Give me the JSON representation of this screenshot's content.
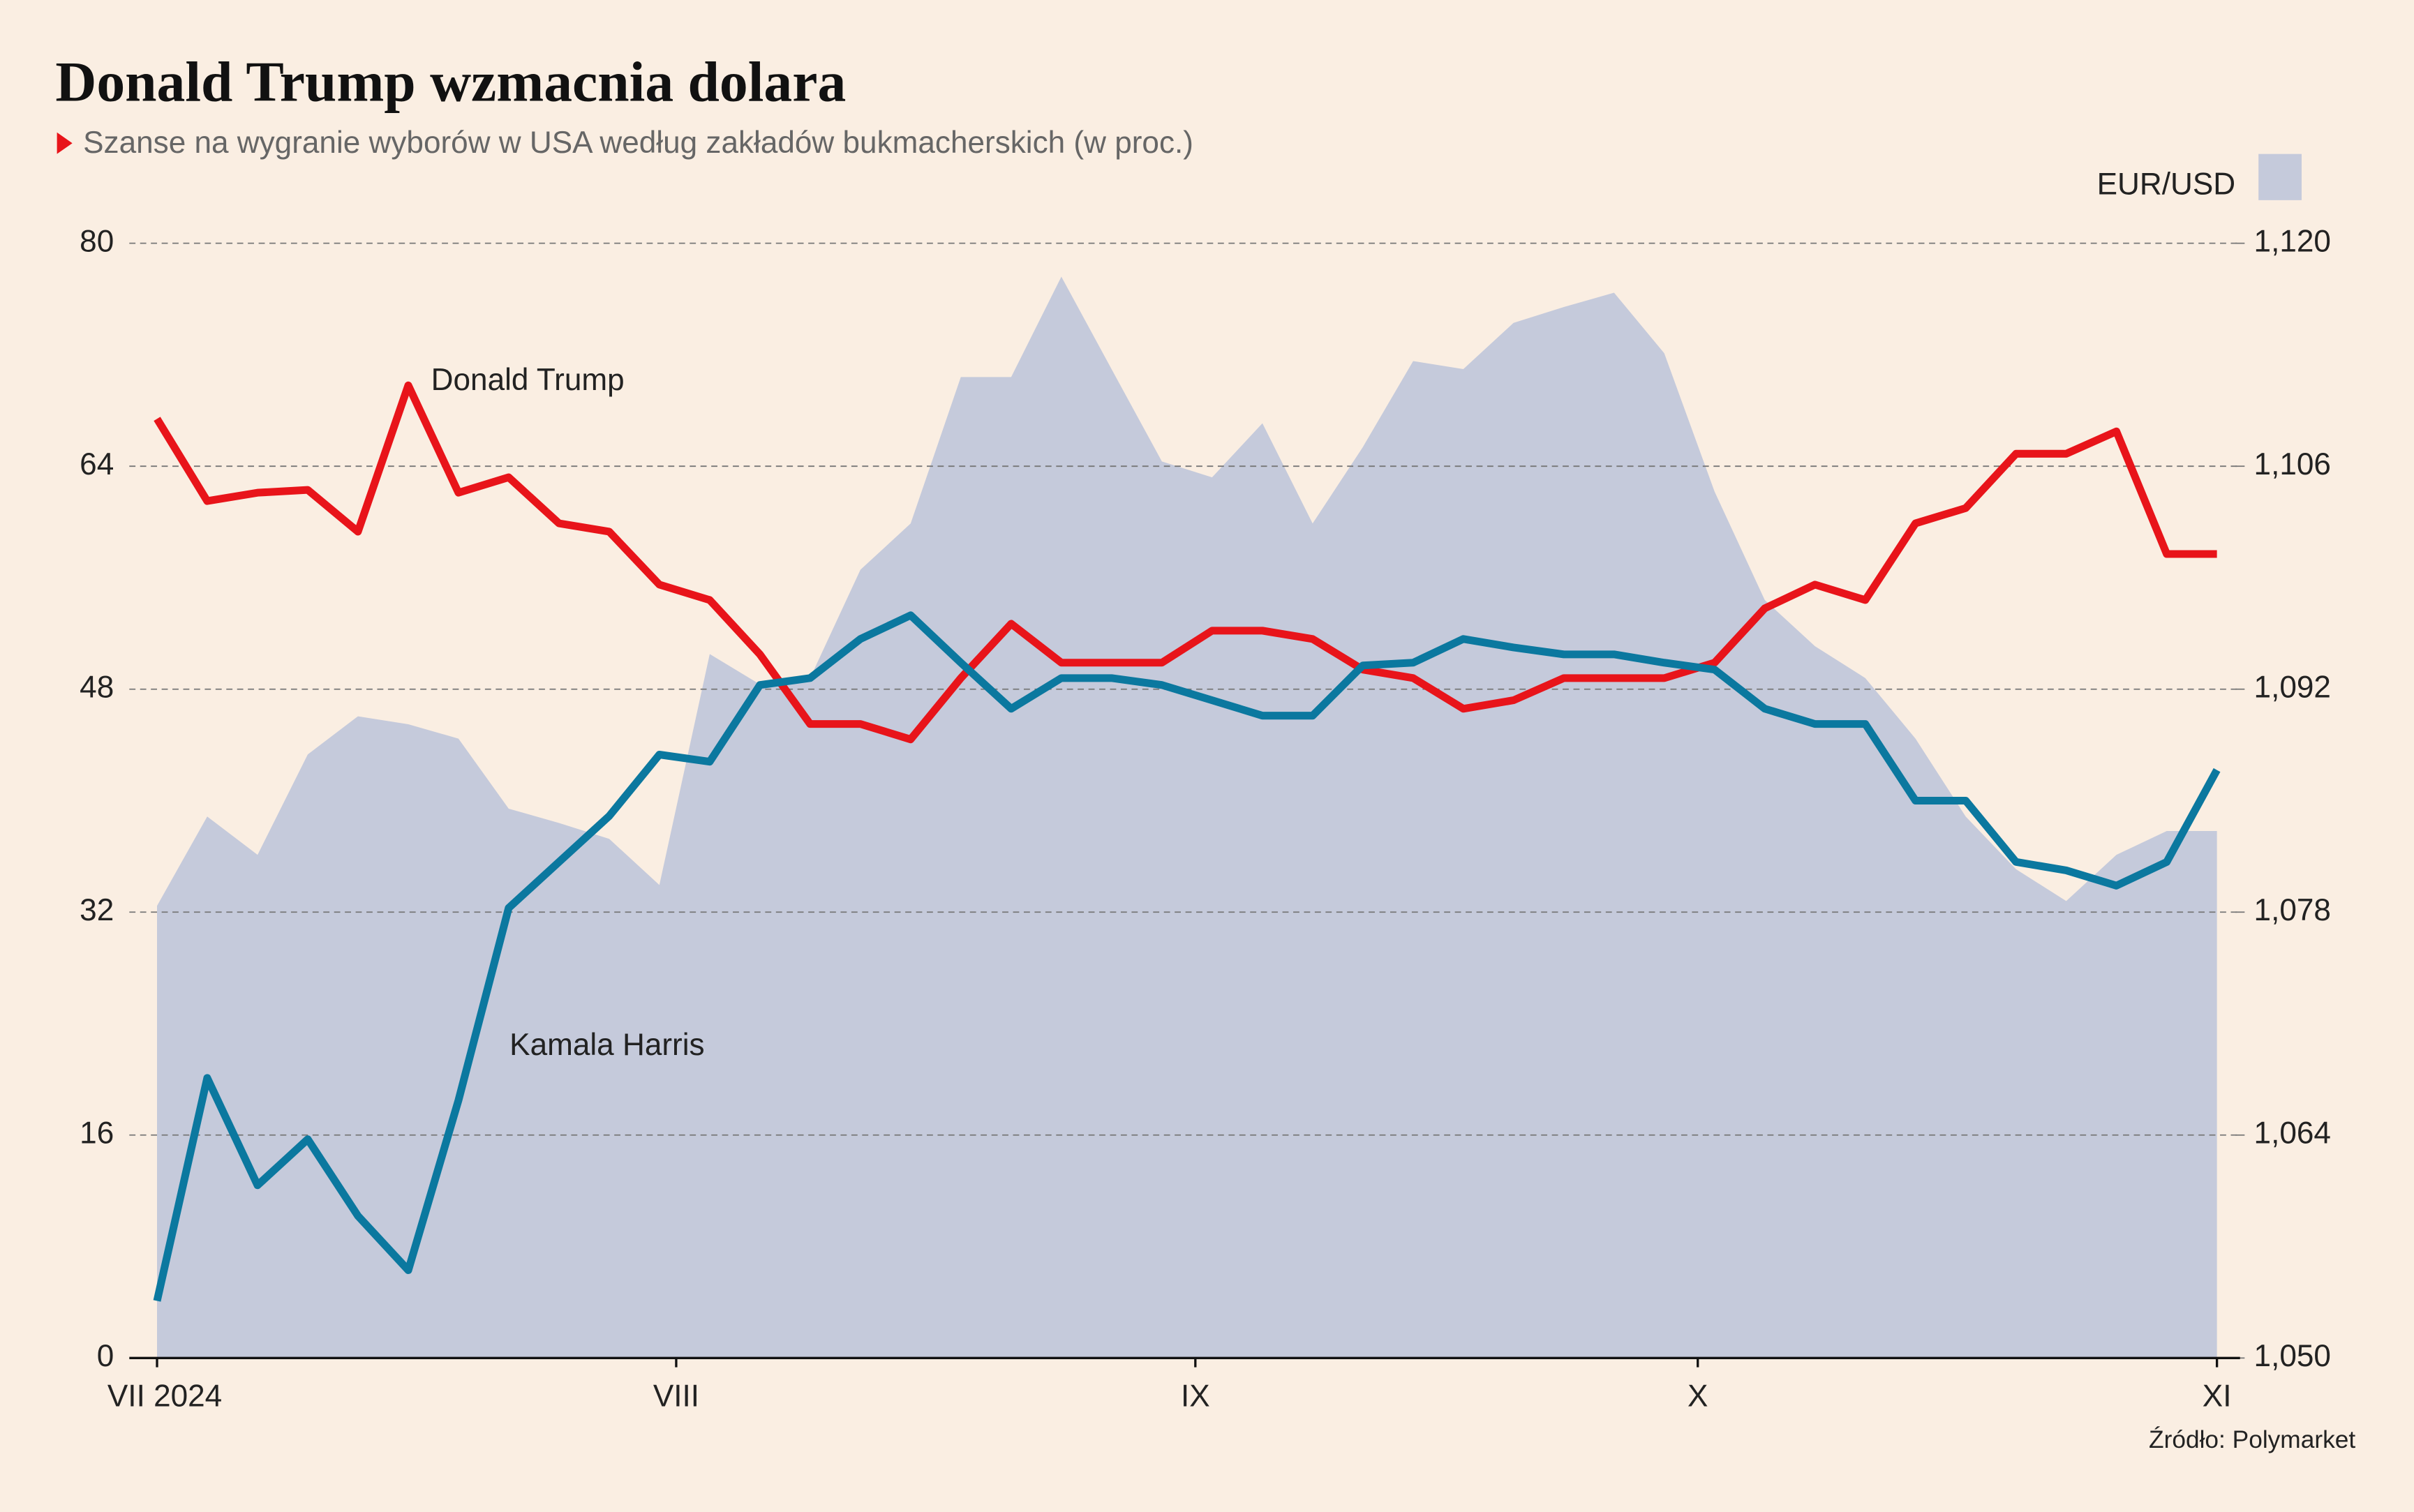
{
  "chart_data": {
    "type": "line",
    "title": "Donald Trump wzmacnia dolara",
    "subtitle": "Szanse na wygranie wyborów w USA według zakładów bukmacherskich (w proc.)",
    "source": "Źródło: Polymarket",
    "grid": true,
    "x": [
      0,
      3,
      6,
      9,
      12,
      15,
      18,
      21,
      24,
      27,
      30,
      33,
      36,
      39,
      42,
      45,
      48,
      51,
      54,
      57,
      60,
      63,
      66,
      69,
      72,
      75,
      78,
      81,
      84,
      87,
      90,
      93,
      96,
      99,
      102,
      105,
      108,
      111,
      114,
      117,
      120,
      123
    ],
    "xlim": [
      0,
      123
    ],
    "xticks": [
      {
        "value": 0,
        "label": "VII 2024"
      },
      {
        "value": 31,
        "label": "VIII"
      },
      {
        "value": 62,
        "label": "IX"
      },
      {
        "value": 92,
        "label": "X"
      },
      {
        "value": 123,
        "label": "XI"
      }
    ],
    "ylim": [
      0,
      80
    ],
    "yticks": [
      0,
      16,
      32,
      48,
      64,
      80
    ],
    "y2lim": [
      1.05,
      1.12
    ],
    "y2ticks": [
      {
        "value": 1.05,
        "label": "1,050"
      },
      {
        "value": 1.064,
        "label": "1,064"
      },
      {
        "value": 1.078,
        "label": "1,078"
      },
      {
        "value": 1.092,
        "label": "1,092"
      },
      {
        "value": 1.106,
        "label": "1,106"
      },
      {
        "value": 1.12,
        "label": "1,120"
      }
    ],
    "series": [
      {
        "name": "EUR/USD",
        "color": "#c5cadb",
        "axis": "y2",
        "values": [
          1.0784,
          1.084,
          1.0816,
          1.0879,
          1.0903,
          1.0898,
          1.0889,
          1.0845,
          1.0836,
          1.0826,
          1.0797,
          1.0942,
          1.0923,
          1.0927,
          1.0995,
          1.1024,
          1.1116,
          1.1116,
          1.1179,
          1.1121,
          1.1063,
          1.1053,
          1.1087,
          1.1024,
          1.1072,
          1.1126,
          1.1121,
          1.115,
          1.116,
          1.1169,
          1.1131,
          1.1044,
          1.0976,
          1.0947,
          1.0927,
          1.0889,
          1.084,
          1.0807,
          1.0787,
          1.0816,
          1.0831,
          1.0831
        ]
      },
      {
        "name": "Donald Trump",
        "color": "#e8141a",
        "values": [
          67.4,
          61.5,
          62.1,
          62.3,
          59.3,
          69.8,
          62.1,
          63.2,
          59.9,
          59.3,
          55.5,
          54.4,
          50.5,
          45.5,
          45.5,
          44.4,
          48.8,
          52.7,
          49.9,
          49.9,
          49.9,
          52.2,
          52.2,
          51.6,
          49.4,
          48.8,
          46.6,
          47.2,
          48.8,
          48.8,
          48.8,
          49.9,
          53.8,
          55.5,
          54.4,
          59.9,
          61.0,
          64.9,
          64.9,
          66.5,
          57.7,
          57.7
        ]
      },
      {
        "name": "Kamala Harris",
        "color": "#0b789f",
        "values": [
          4.1,
          20.1,
          12.4,
          15.7,
          10.2,
          6.3,
          18.5,
          32.3,
          35.6,
          38.9,
          43.3,
          42.8,
          48.3,
          48.8,
          51.6,
          53.3,
          49.9,
          46.6,
          48.8,
          48.8,
          48.3,
          47.2,
          46.1,
          46.1,
          49.7,
          49.9,
          51.6,
          51.0,
          50.5,
          50.5,
          49.9,
          49.4,
          46.6,
          45.5,
          45.5,
          40.0,
          40.0,
          35.6,
          35.0,
          33.9,
          35.6,
          42.2
        ]
      }
    ]
  }
}
